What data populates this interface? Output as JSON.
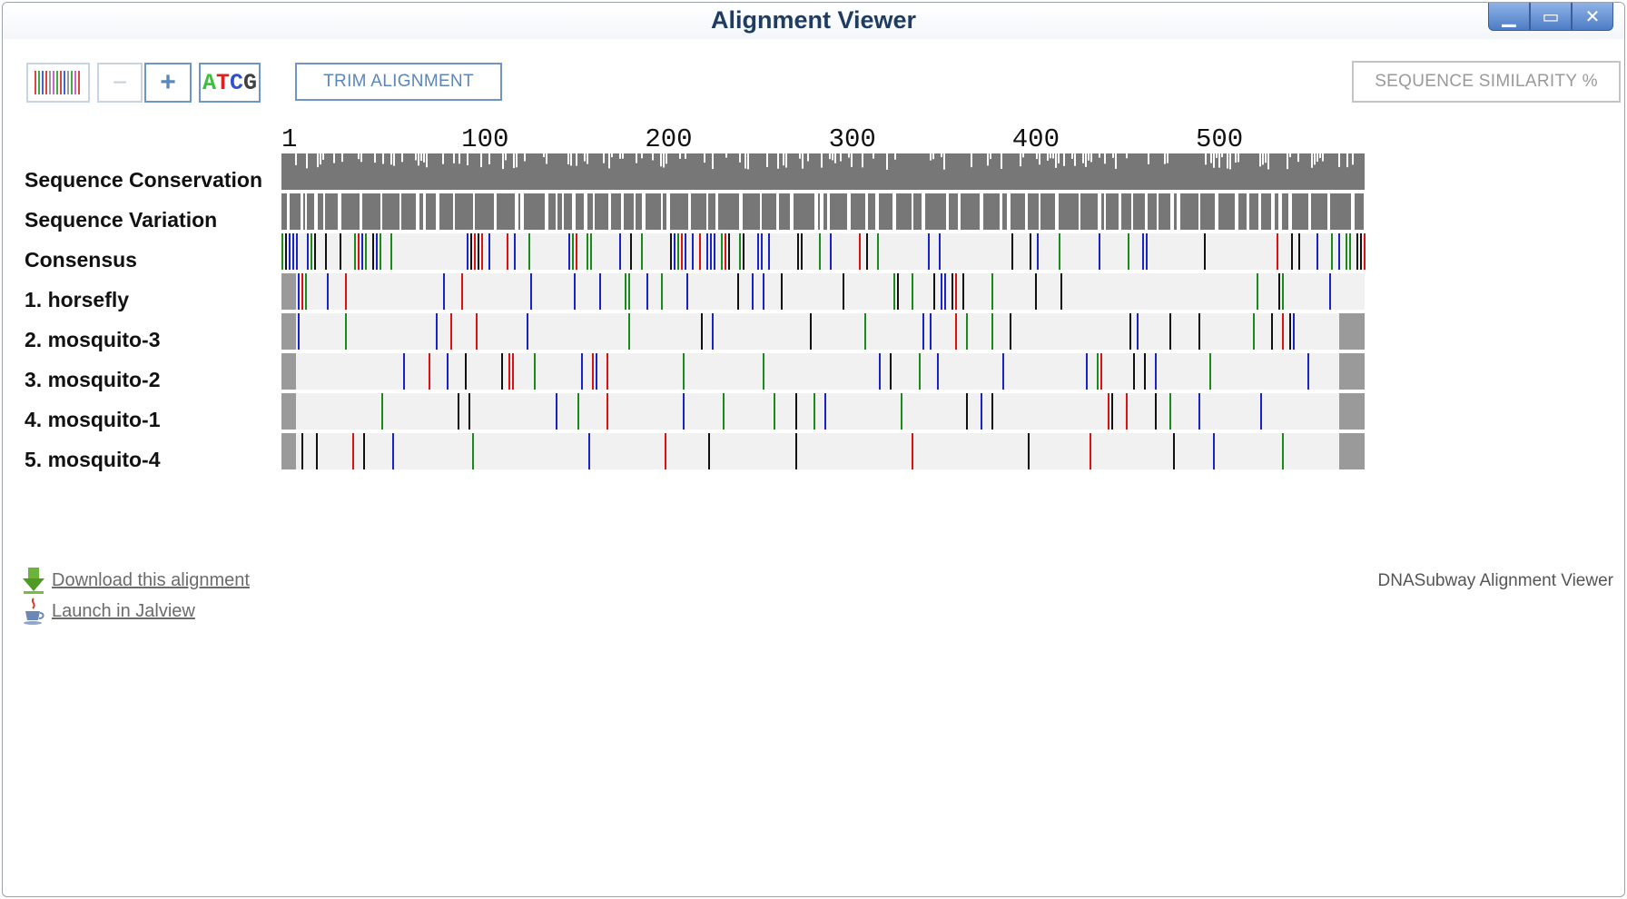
{
  "window": {
    "title": "Alignment Viewer",
    "controls": [
      "minimize",
      "maximize",
      "close"
    ]
  },
  "toolbar": {
    "barcode_icon": "barcode-icon",
    "zoom_out_label": "−",
    "zoom_in_label": "+",
    "atcg_letters": [
      "A",
      "T",
      "C",
      "G"
    ],
    "atcg_colors": [
      "#3fbf3f",
      "#e02020",
      "#3050d0",
      "#404040"
    ],
    "trim_label": "TRIM ALIGNMENT",
    "similarity_label": "SEQUENCE SIMILARITY %"
  },
  "ruler": {
    "ticks": [
      "1",
      "100",
      "200",
      "300",
      "400",
      "500"
    ],
    "max": 590
  },
  "colors": {
    "A": "#1a8a1a",
    "T": "#dd1111",
    "C": "#1a22cc",
    "G": "#111111",
    "gap": "#9a9a9a",
    "track_bg": "#f1f1f1",
    "conservation": "#777777"
  },
  "rows": [
    {
      "label": "Sequence Conservation",
      "kind": "conservation"
    },
    {
      "label": "Sequence Variation",
      "kind": "variation"
    },
    {
      "label": "Consensus",
      "kind": "consensus"
    },
    {
      "label": "1. horsefly",
      "kind": "sequence"
    },
    {
      "label": "2. mosquito-3",
      "kind": "sequence"
    },
    {
      "label": "3. mosquito-2",
      "kind": "sequence"
    },
    {
      "label": "4. mosquito-1",
      "kind": "sequence"
    },
    {
      "label": "5. mosquito-4",
      "kind": "sequence"
    }
  ],
  "links": {
    "download_label": "Download this alignment",
    "download_icon": "download-arrow-icon",
    "jalview_label": "Launch in Jalview",
    "jalview_icon": "java-cup-icon"
  },
  "footer": {
    "note": "DNASubway Alignment Viewer"
  }
}
